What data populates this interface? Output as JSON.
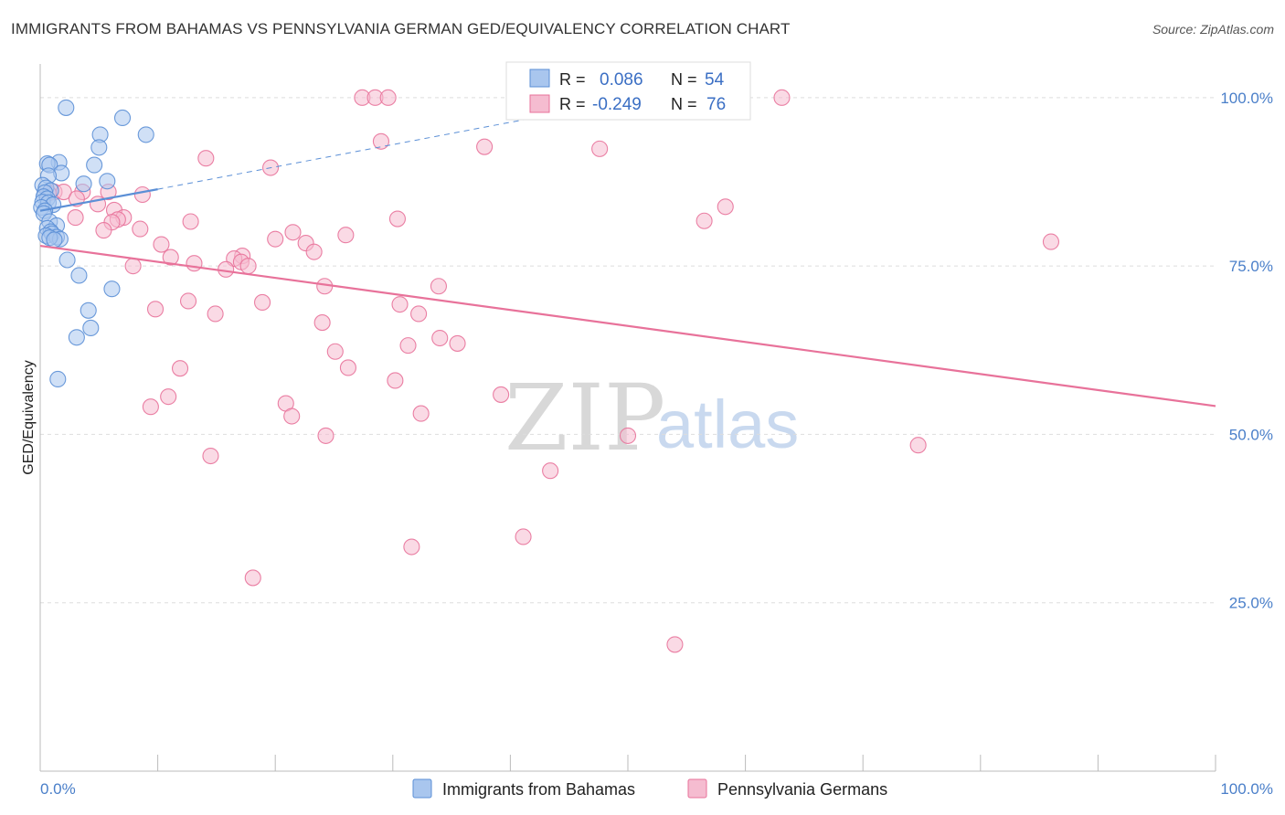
{
  "title": "IMMIGRANTS FROM BAHAMAS VS PENNSYLVANIA GERMAN GED/EQUIVALENCY CORRELATION CHART",
  "source": "Source: ZipAtlas.com",
  "watermark": {
    "zip": "ZIP",
    "atlas": "atlas"
  },
  "chart_data": {
    "type": "scatter",
    "ylabel": "GED/Equivalency",
    "xlim": [
      0,
      100
    ],
    "ylim": [
      0,
      105
    ],
    "x_tick_labels": [
      "0.0%",
      "100.0%"
    ],
    "y_ticks": [
      25,
      50,
      75,
      100
    ],
    "y_tick_labels": [
      "25.0%",
      "50.0%",
      "75.0%",
      "100.0%"
    ],
    "grid": "horizontal-dashed",
    "colors": {
      "blue": "#5b8fd6",
      "blue_fill": "#a9c6ee",
      "pink": "#e8729a",
      "pink_fill": "#f5bcd0",
      "axis_text": "#4a7fc9"
    },
    "legend": {
      "rows": [
        {
          "r_label": "R =",
          "r_value": "0.086",
          "n_label": "N =",
          "n_value": "54"
        },
        {
          "r_label": "R =",
          "r_value": "-0.249",
          "n_label": "N =",
          "n_value": "76"
        }
      ]
    },
    "series": [
      {
        "name": "Immigrants from Bahamas",
        "color": "#5b8fd6",
        "trend": {
          "x0": 0,
          "y0": 83.2,
          "x1": 10,
          "y1": 86.4,
          "dashed_to_x": 45,
          "dashed_to_y": 98.0
        },
        "points": [
          [
            2.2,
            98.5
          ],
          [
            7.0,
            97.0
          ],
          [
            9.0,
            94.5
          ],
          [
            5.1,
            94.5
          ],
          [
            5.0,
            92.6
          ],
          [
            1.6,
            90.4
          ],
          [
            0.6,
            90.2
          ],
          [
            0.8,
            90.0
          ],
          [
            4.6,
            90.0
          ],
          [
            1.8,
            88.8
          ],
          [
            0.7,
            88.4
          ],
          [
            5.7,
            87.6
          ],
          [
            3.7,
            87.2
          ],
          [
            0.2,
            87.0
          ],
          [
            0.5,
            86.6
          ],
          [
            0.9,
            86.2
          ],
          [
            0.4,
            85.9
          ],
          [
            0.3,
            85.3
          ],
          [
            0.6,
            85.0
          ],
          [
            0.2,
            84.5
          ],
          [
            0.7,
            84.4
          ],
          [
            1.1,
            84.1
          ],
          [
            0.1,
            83.7
          ],
          [
            0.4,
            83.2
          ],
          [
            0.3,
            82.8
          ],
          [
            0.8,
            81.6
          ],
          [
            1.4,
            81.0
          ],
          [
            0.6,
            80.6
          ],
          [
            0.9,
            80.1
          ],
          [
            1.0,
            79.8
          ],
          [
            0.5,
            79.5
          ],
          [
            1.4,
            79.3
          ],
          [
            1.7,
            79.0
          ],
          [
            0.8,
            79.2
          ],
          [
            1.2,
            78.9
          ],
          [
            2.3,
            75.9
          ],
          [
            3.3,
            73.6
          ],
          [
            6.1,
            71.6
          ],
          [
            4.1,
            68.4
          ],
          [
            4.3,
            65.8
          ],
          [
            3.1,
            64.4
          ],
          [
            1.5,
            58.2
          ]
        ]
      },
      {
        "name": "Pennsylvania Germans",
        "color": "#e8729a",
        "trend": {
          "x0": 0,
          "y0": 78.0,
          "x1": 100,
          "y1": 54.2
        },
        "points": [
          [
            27.4,
            100.0
          ],
          [
            28.5,
            100.0
          ],
          [
            29.6,
            100.0
          ],
          [
            63.1,
            100.0
          ],
          [
            29.0,
            93.5
          ],
          [
            37.8,
            92.7
          ],
          [
            47.6,
            92.4
          ],
          [
            14.1,
            91.0
          ],
          [
            19.6,
            89.6
          ],
          [
            1.2,
            86.0
          ],
          [
            2.0,
            86.0
          ],
          [
            3.6,
            86.0
          ],
          [
            5.8,
            86.0
          ],
          [
            8.7,
            85.6
          ],
          [
            0.7,
            85.8
          ],
          [
            3.1,
            85.0
          ],
          [
            4.9,
            84.2
          ],
          [
            58.3,
            83.8
          ],
          [
            6.3,
            83.3
          ],
          [
            3.0,
            82.2
          ],
          [
            7.1,
            82.2
          ],
          [
            12.8,
            81.6
          ],
          [
            6.6,
            81.9
          ],
          [
            30.4,
            82.0
          ],
          [
            56.5,
            81.7
          ],
          [
            6.1,
            81.5
          ],
          [
            5.4,
            80.3
          ],
          [
            8.5,
            80.5
          ],
          [
            21.5,
            80.0
          ],
          [
            26.0,
            79.6
          ],
          [
            20.0,
            79.0
          ],
          [
            22.6,
            78.4
          ],
          [
            10.3,
            78.2
          ],
          [
            86.0,
            78.6
          ],
          [
            23.3,
            77.1
          ],
          [
            11.1,
            76.3
          ],
          [
            17.2,
            76.5
          ],
          [
            16.5,
            76.1
          ],
          [
            17.1,
            75.6
          ],
          [
            13.1,
            75.4
          ],
          [
            7.9,
            75.0
          ],
          [
            17.7,
            75.0
          ],
          [
            15.8,
            74.5
          ],
          [
            24.2,
            72.0
          ],
          [
            33.9,
            72.0
          ],
          [
            12.6,
            69.8
          ],
          [
            18.9,
            69.6
          ],
          [
            30.6,
            69.3
          ],
          [
            9.8,
            68.6
          ],
          [
            14.9,
            67.9
          ],
          [
            32.2,
            67.9
          ],
          [
            24.0,
            66.6
          ],
          [
            34.0,
            64.3
          ],
          [
            35.5,
            63.5
          ],
          [
            31.3,
            63.2
          ],
          [
            25.1,
            62.3
          ],
          [
            26.2,
            59.9
          ],
          [
            11.9,
            59.8
          ],
          [
            30.2,
            58.0
          ],
          [
            39.2,
            55.9
          ],
          [
            10.9,
            55.6
          ],
          [
            20.9,
            54.6
          ],
          [
            9.4,
            54.1
          ],
          [
            32.4,
            53.1
          ],
          [
            21.4,
            52.7
          ],
          [
            24.3,
            49.8
          ],
          [
            50.0,
            49.8
          ],
          [
            74.7,
            48.4
          ],
          [
            14.5,
            46.8
          ],
          [
            43.4,
            44.6
          ],
          [
            41.1,
            34.8
          ],
          [
            31.6,
            33.3
          ],
          [
            18.1,
            28.7
          ],
          [
            54.0,
            18.8
          ]
        ]
      }
    ]
  }
}
